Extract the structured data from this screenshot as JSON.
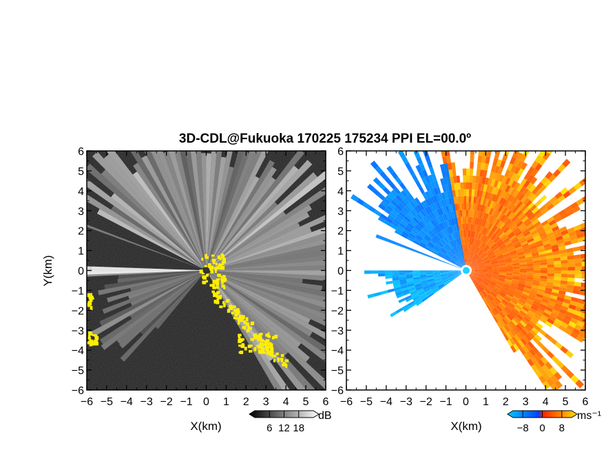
{
  "title": "3D-CDL@Fukuoka 170225 175234 PPI EL=00.0º",
  "chart_data": [
    {
      "type": "heatmap",
      "name": "reflectivity-ppi",
      "xlabel": "X(km)",
      "ylabel": "Y(km)",
      "xlim": [
        -6,
        6
      ],
      "ylim": [
        -6,
        6
      ],
      "xticks": [
        -6,
        -5,
        -4,
        -3,
        -2,
        -1,
        0,
        1,
        2,
        3,
        4,
        5,
        6
      ],
      "yticks": [
        -6,
        -5,
        -4,
        -3,
        -2,
        -1,
        0,
        1,
        2,
        3,
        4,
        5,
        6
      ],
      "xtick_labels": [
        "−6",
        "−5",
        "−4",
        "−3",
        "−2",
        "−1",
        "0",
        "1",
        "2",
        "3",
        "4",
        "5",
        "6"
      ],
      "ytick_labels": [
        "−6",
        "−5",
        "−4",
        "−3",
        "−2",
        "−1",
        "0",
        "1",
        "2",
        "3",
        "4",
        "5",
        "6"
      ],
      "colorbar": {
        "unit": "dB",
        "range": [
          0,
          24
        ],
        "ticks": [
          6,
          12,
          18
        ],
        "tick_labels": [
          "6",
          "12",
          "18"
        ],
        "colors": [
          "#000000",
          "#ffffff"
        ]
      }
    },
    {
      "type": "heatmap",
      "name": "doppler-velocity-ppi",
      "xlabel": "X(km)",
      "ylabel": "",
      "xlim": [
        -6,
        6
      ],
      "ylim": [
        -6,
        6
      ],
      "xticks": [
        -6,
        -5,
        -4,
        -3,
        -2,
        -1,
        0,
        1,
        2,
        3,
        4,
        5,
        6
      ],
      "yticks": [
        -6,
        -5,
        -4,
        -3,
        -2,
        -1,
        0,
        1,
        2,
        3,
        4,
        5,
        6
      ],
      "xtick_labels": [
        "−6",
        "−5",
        "−4",
        "−3",
        "−2",
        "−1",
        "0",
        "1",
        "2",
        "3",
        "4",
        "5",
        "6"
      ],
      "ytick_labels": [
        "−6",
        "−5",
        "−4",
        "−3",
        "−2",
        "−1",
        "0",
        "1",
        "2",
        "3",
        "4",
        "5",
        "6"
      ],
      "colorbar": {
        "unit": "ms⁻¹",
        "range": [
          -12,
          12
        ],
        "ticks": [
          -8,
          0,
          8
        ],
        "tick_labels": [
          "−8",
          "0",
          "8"
        ],
        "colors": [
          "#00c8ff",
          "#0040ff",
          "#ff2000",
          "#ffe000"
        ]
      }
    }
  ]
}
